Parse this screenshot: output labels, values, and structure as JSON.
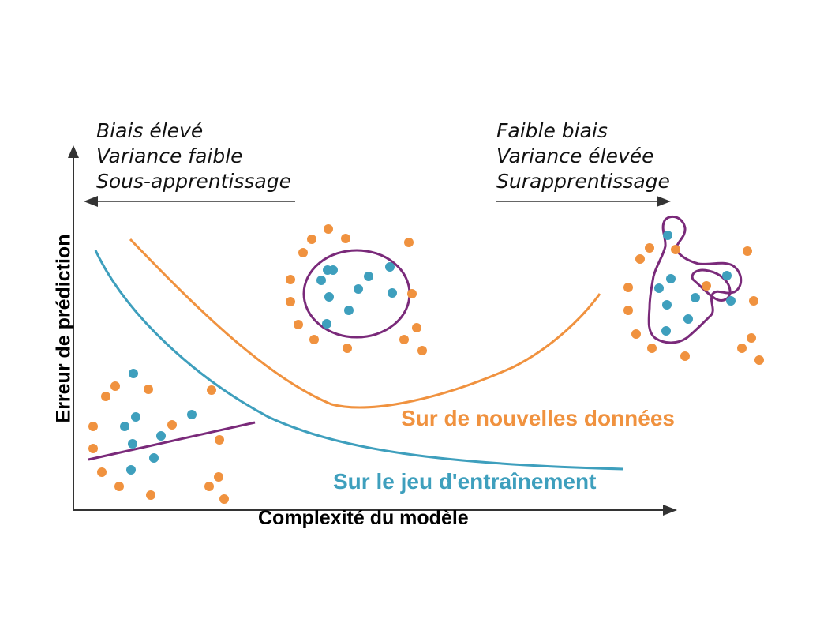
{
  "left_note": {
    "lines": [
      "Biais élevé",
      "Variance faible",
      "Sous-apprentissage"
    ]
  },
  "right_note": {
    "lines": [
      "Faible biais",
      "Variance élevée",
      "Surapprentissage"
    ]
  },
  "axes": {
    "x_label": "Complexité du modèle",
    "y_label": "Erreur de prédiction"
  },
  "curves": {
    "test": {
      "label": "Sur de nouvelles données",
      "color": "#f0923f"
    },
    "train": {
      "label": "Sur le jeu d'entraînement",
      "color": "#3e9fbd"
    }
  },
  "colors": {
    "fit_line": "#7a2a7a",
    "orange_points": "#f0923f",
    "blue_points": "#3e9fbd",
    "axis": "#333333"
  }
}
